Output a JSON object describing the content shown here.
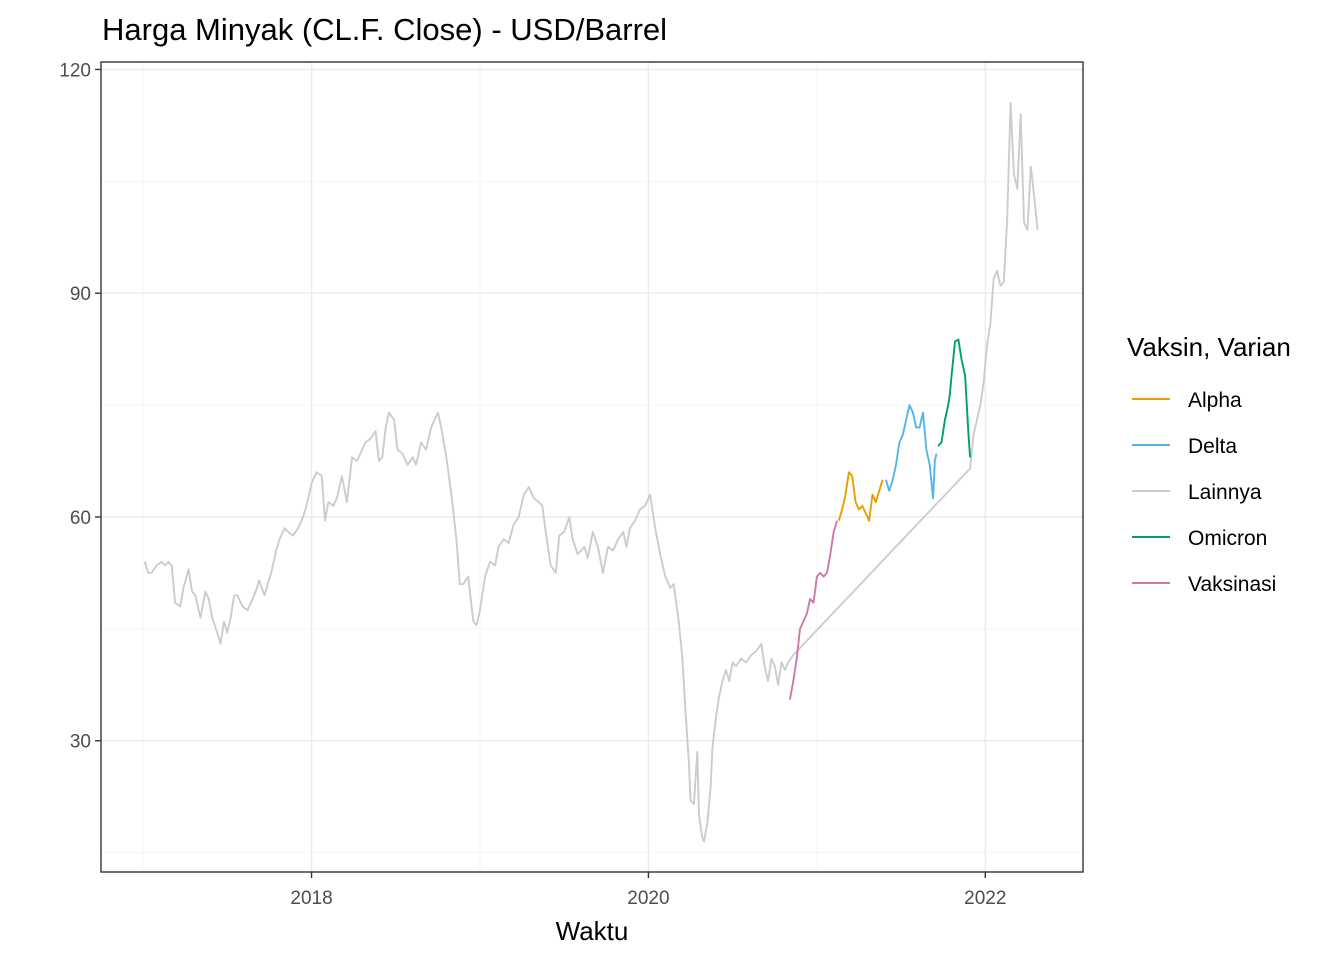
{
  "chart_data": {
    "type": "line",
    "title": "Harga Minyak (CL.F. Close) - USD/Barrel",
    "xlabel": "Waktu",
    "ylabel": "",
    "xlim": [
      2016.75,
      2022.58
    ],
    "ylim": [
      12.4,
      121
    ],
    "x_ticks": [
      2018,
      2020,
      2022
    ],
    "x_tick_labels": [
      "2018",
      "2020",
      "2022"
    ],
    "y_ticks": [
      30,
      60,
      90,
      120
    ],
    "y_tick_labels": [
      "30",
      "60",
      "90",
      "120"
    ],
    "grid": true,
    "legend_title": "Vaksin, Varian",
    "legend_position": "right",
    "series": [
      {
        "name": "Alpha",
        "color": "#E69F00",
        "points": [
          [
            2021.13,
            59.5
          ],
          [
            2021.15,
            61
          ],
          [
            2021.17,
            63
          ],
          [
            2021.19,
            66
          ],
          [
            2021.21,
            65.5
          ],
          [
            2021.23,
            62
          ],
          [
            2021.25,
            61
          ],
          [
            2021.27,
            61.5
          ],
          [
            2021.29,
            60.5
          ],
          [
            2021.31,
            59.5
          ],
          [
            2021.33,
            63
          ],
          [
            2021.35,
            62
          ],
          [
            2021.37,
            63.5
          ],
          [
            2021.39,
            65
          ]
        ]
      },
      {
        "name": "Delta",
        "color": "#56B4E9",
        "points": [
          [
            2021.41,
            65
          ],
          [
            2021.43,
            63.5
          ],
          [
            2021.45,
            65
          ],
          [
            2021.47,
            67
          ],
          [
            2021.49,
            70
          ],
          [
            2021.51,
            71
          ],
          [
            2021.53,
            73
          ],
          [
            2021.55,
            75
          ],
          [
            2021.57,
            74
          ],
          [
            2021.59,
            72
          ],
          [
            2021.61,
            72
          ],
          [
            2021.63,
            74
          ],
          [
            2021.65,
            69
          ],
          [
            2021.67,
            67
          ],
          [
            2021.69,
            62.5
          ],
          [
            2021.7,
            67.5
          ],
          [
            2021.71,
            68.5
          ]
        ]
      },
      {
        "name": "Lainnya",
        "color": "#cccccc",
        "points": [
          [
            2017.01,
            54
          ],
          [
            2017.03,
            52.5
          ],
          [
            2017.05,
            52.5
          ],
          [
            2017.08,
            53.5
          ],
          [
            2017.11,
            54
          ],
          [
            2017.13,
            53.5
          ],
          [
            2017.15,
            54
          ],
          [
            2017.17,
            53.5
          ],
          [
            2017.19,
            48.5
          ],
          [
            2017.22,
            48
          ],
          [
            2017.24,
            50.5
          ],
          [
            2017.27,
            53
          ],
          [
            2017.29,
            50
          ],
          [
            2017.31,
            49.5
          ],
          [
            2017.34,
            46.5
          ],
          [
            2017.37,
            50
          ],
          [
            2017.39,
            49
          ],
          [
            2017.41,
            46.5
          ],
          [
            2017.44,
            44.5
          ],
          [
            2017.46,
            43
          ],
          [
            2017.48,
            46
          ],
          [
            2017.5,
            44.5
          ],
          [
            2017.52,
            46.5
          ],
          [
            2017.54,
            49.5
          ],
          [
            2017.56,
            49.5
          ],
          [
            2017.59,
            48
          ],
          [
            2017.62,
            47.5
          ],
          [
            2017.66,
            49.5
          ],
          [
            2017.69,
            51.5
          ],
          [
            2017.72,
            49.5
          ],
          [
            2017.76,
            52.5
          ],
          [
            2017.79,
            55.5
          ],
          [
            2017.81,
            57
          ],
          [
            2017.84,
            58.5
          ],
          [
            2017.86,
            58
          ],
          [
            2017.89,
            57.5
          ],
          [
            2017.92,
            58.5
          ],
          [
            2017.95,
            60
          ],
          [
            2017.97,
            61.5
          ],
          [
            2018.0,
            64.5
          ],
          [
            2018.03,
            66
          ],
          [
            2018.06,
            65.5
          ],
          [
            2018.08,
            59.5
          ],
          [
            2018.1,
            62
          ],
          [
            2018.13,
            61.5
          ],
          [
            2018.15,
            62.5
          ],
          [
            2018.18,
            65.5
          ],
          [
            2018.21,
            62
          ],
          [
            2018.24,
            68
          ],
          [
            2018.27,
            67.5
          ],
          [
            2018.29,
            68.5
          ],
          [
            2018.32,
            70
          ],
          [
            2018.35,
            70.5
          ],
          [
            2018.38,
            71.5
          ],
          [
            2018.4,
            67.5
          ],
          [
            2018.42,
            68
          ],
          [
            2018.44,
            72
          ],
          [
            2018.46,
            74
          ],
          [
            2018.49,
            73
          ],
          [
            2018.51,
            69
          ],
          [
            2018.54,
            68.5
          ],
          [
            2018.57,
            67
          ],
          [
            2018.6,
            68
          ],
          [
            2018.62,
            67
          ],
          [
            2018.65,
            70
          ],
          [
            2018.68,
            69
          ],
          [
            2018.71,
            72
          ],
          [
            2018.75,
            74
          ],
          [
            2018.77,
            72
          ],
          [
            2018.8,
            68
          ],
          [
            2018.83,
            63
          ],
          [
            2018.86,
            57
          ],
          [
            2018.88,
            51
          ],
          [
            2018.9,
            51
          ],
          [
            2018.93,
            52
          ],
          [
            2018.96,
            46
          ],
          [
            2018.98,
            45.5
          ],
          [
            2019.0,
            47.5
          ],
          [
            2019.03,
            52
          ],
          [
            2019.06,
            54
          ],
          [
            2019.09,
            53.5
          ],
          [
            2019.11,
            56
          ],
          [
            2019.14,
            57
          ],
          [
            2019.17,
            56.5
          ],
          [
            2019.2,
            59
          ],
          [
            2019.23,
            60
          ],
          [
            2019.26,
            63
          ],
          [
            2019.29,
            64
          ],
          [
            2019.32,
            62.5
          ],
          [
            2019.35,
            62
          ],
          [
            2019.37,
            61.5
          ],
          [
            2019.39,
            58
          ],
          [
            2019.42,
            53.5
          ],
          [
            2019.45,
            52.5
          ],
          [
            2019.47,
            57.5
          ],
          [
            2019.5,
            58
          ],
          [
            2019.53,
            60
          ],
          [
            2019.55,
            57
          ],
          [
            2019.58,
            55
          ],
          [
            2019.62,
            56
          ],
          [
            2019.64,
            54.5
          ],
          [
            2019.67,
            58
          ],
          [
            2019.7,
            56
          ],
          [
            2019.73,
            52.5
          ],
          [
            2019.76,
            56
          ],
          [
            2019.79,
            55.5
          ],
          [
            2019.82,
            57
          ],
          [
            2019.85,
            58
          ],
          [
            2019.87,
            56
          ],
          [
            2019.89,
            58.5
          ],
          [
            2019.92,
            59.5
          ],
          [
            2019.95,
            61
          ],
          [
            2019.98,
            61.5
          ],
          [
            2020.01,
            63
          ],
          [
            2020.04,
            58.5
          ],
          [
            2020.07,
            55
          ],
          [
            2020.1,
            52
          ],
          [
            2020.13,
            50.5
          ],
          [
            2020.15,
            51
          ],
          [
            2020.18,
            46
          ],
          [
            2020.2,
            41.5
          ],
          [
            2020.22,
            34
          ],
          [
            2020.24,
            27
          ],
          [
            2020.25,
            22
          ],
          [
            2020.27,
            21.5
          ],
          [
            2020.29,
            28.5
          ],
          [
            2020.3,
            20
          ],
          [
            2020.32,
            17
          ],
          [
            2020.33,
            16.5
          ],
          [
            2020.35,
            19
          ],
          [
            2020.37,
            24
          ],
          [
            2020.38,
            29
          ],
          [
            2020.4,
            33
          ],
          [
            2020.42,
            36
          ],
          [
            2020.44,
            38
          ],
          [
            2020.46,
            39.5
          ],
          [
            2020.48,
            38
          ],
          [
            2020.5,
            40.5
          ],
          [
            2020.52,
            40
          ],
          [
            2020.55,
            41
          ],
          [
            2020.58,
            40.5
          ],
          [
            2020.61,
            41.5
          ],
          [
            2020.64,
            42
          ],
          [
            2020.67,
            43
          ],
          [
            2020.69,
            40
          ],
          [
            2020.71,
            38
          ],
          [
            2020.73,
            41
          ],
          [
            2020.75,
            40
          ],
          [
            2020.77,
            37.5
          ],
          [
            2020.79,
            40.5
          ],
          [
            2020.81,
            39.5
          ],
          [
            2020.83,
            40.5
          ],
          [
            2020.86,
            41.5
          ],
          [
            2021.91,
            66.5
          ],
          [
            2021.93,
            71
          ],
          [
            2021.95,
            73
          ],
          [
            2021.97,
            75
          ],
          [
            2021.99,
            78
          ],
          [
            2022.01,
            83
          ],
          [
            2022.03,
            86
          ],
          [
            2022.05,
            92
          ],
          [
            2022.07,
            93
          ],
          [
            2022.09,
            91
          ],
          [
            2022.11,
            91.5
          ],
          [
            2022.13,
            100
          ],
          [
            2022.15,
            115.5
          ],
          [
            2022.17,
            106
          ],
          [
            2022.19,
            104
          ],
          [
            2022.21,
            114
          ],
          [
            2022.23,
            99.5
          ],
          [
            2022.25,
            98.5
          ],
          [
            2022.27,
            107
          ],
          [
            2022.29,
            103
          ],
          [
            2022.31,
            98.5
          ]
        ]
      },
      {
        "name": "Omicron",
        "color": "#009E73",
        "points": [
          [
            2021.72,
            69.5
          ],
          [
            2021.74,
            70
          ],
          [
            2021.76,
            73
          ],
          [
            2021.78,
            75
          ],
          [
            2021.79,
            76.5
          ],
          [
            2021.8,
            79
          ],
          [
            2021.82,
            83.5
          ],
          [
            2021.84,
            83.8
          ],
          [
            2021.86,
            81
          ],
          [
            2021.88,
            79
          ],
          [
            2021.9,
            71
          ],
          [
            2021.91,
            68
          ]
        ]
      },
      {
        "name": "Vaksinasi",
        "color": "#CC79A7",
        "points": [
          [
            2020.84,
            35.5
          ],
          [
            2020.86,
            38
          ],
          [
            2020.88,
            41
          ],
          [
            2020.9,
            45
          ],
          [
            2020.92,
            46
          ],
          [
            2020.94,
            47
          ],
          [
            2020.96,
            49
          ],
          [
            2020.98,
            48.5
          ],
          [
            2021.0,
            52
          ],
          [
            2021.02,
            52.5
          ],
          [
            2021.04,
            52
          ],
          [
            2021.06,
            52.5
          ],
          [
            2021.08,
            55
          ],
          [
            2021.1,
            58
          ],
          [
            2021.12,
            59.5
          ]
        ]
      }
    ]
  }
}
